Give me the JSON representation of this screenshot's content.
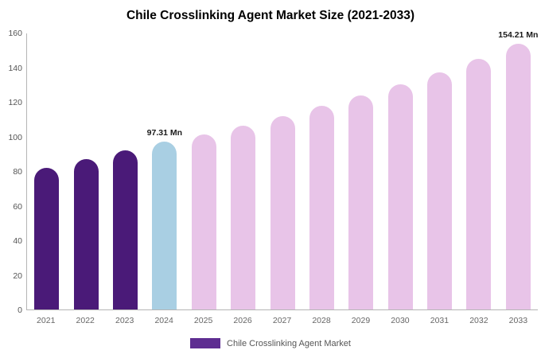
{
  "title": "Chile Crosslinking Agent Market Size (2021-2033)",
  "legend": {
    "label": "Chile Crosslinking Agent Market",
    "swatch_color": "#5e2d91"
  },
  "colors": {
    "historical_bar": "#4a1a78",
    "base_year_bar": "#a9cfe3",
    "forecast_bar": "#e8c4e8",
    "axis_line": "#b5b5b5",
    "tick_text": "#555555"
  },
  "chart_data": {
    "type": "bar",
    "title": "Chile Crosslinking Agent Market Size (2021-2033)",
    "categories": [
      "2021",
      "2022",
      "2023",
      "2024",
      "2025",
      "2026",
      "2027",
      "2028",
      "2029",
      "2030",
      "2031",
      "2032",
      "2033"
    ],
    "values": [
      82.3,
      87.2,
      92.0,
      97.31,
      101.5,
      106.5,
      112.0,
      118.0,
      124.0,
      130.5,
      137.5,
      145.3,
      154.21
    ],
    "bar_colors": [
      "#4a1a78",
      "#4a1a78",
      "#4a1a78",
      "#a9cfe3",
      "#e8c4e8",
      "#e8c4e8",
      "#e8c4e8",
      "#e8c4e8",
      "#e8c4e8",
      "#e8c4e8",
      "#e8c4e8",
      "#e8c4e8",
      "#e8c4e8"
    ],
    "xlabel": "",
    "ylabel": "",
    "ylim": [
      0,
      160
    ],
    "yticks": [
      0,
      20,
      40,
      60,
      80,
      100,
      120,
      140,
      160
    ],
    "grid": false,
    "legend_position": "bottom",
    "annotations": [
      {
        "index": 3,
        "text": "97.31 Mn"
      },
      {
        "index": 12,
        "text": "154.21 Mn"
      }
    ]
  }
}
